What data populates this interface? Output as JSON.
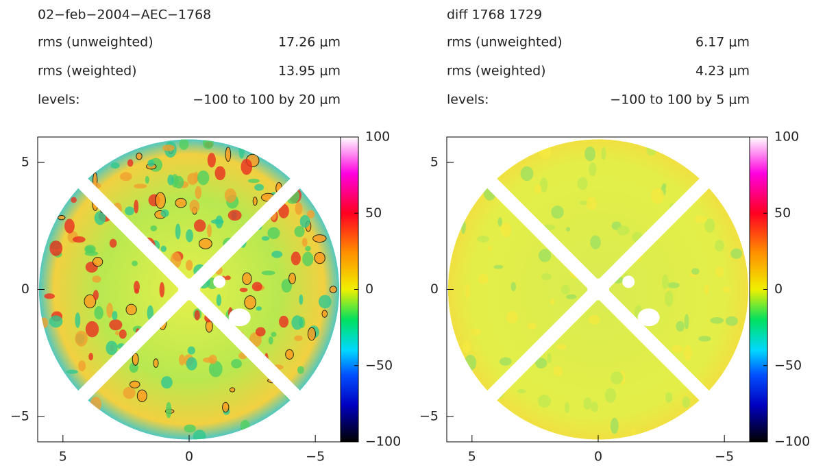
{
  "chart_data": [
    {
      "type": "heatmap",
      "title": "02−feb−2004−AEC−1768",
      "stats": [
        {
          "label": "rms (unweighted)",
          "value": "17.26 μm"
        },
        {
          "label": "rms (weighted)",
          "value": "13.95 μm"
        },
        {
          "label": "levels:",
          "value": "−100 to 100 by 20 μm"
        }
      ],
      "xlim": [
        6,
        -6
      ],
      "ylim": [
        -6,
        6
      ],
      "xticks": [
        5,
        0,
        {
          "value": -5,
          "label": "−5"
        }
      ],
      "yticks": [
        5,
        0,
        {
          "value": -5,
          "label": "−5"
        }
      ],
      "clim": [
        -100,
        100
      ],
      "cticks": [
        100,
        50,
        0,
        {
          "value": -50,
          "label": "−50"
        },
        {
          "value": -100,
          "label": "−100"
        }
      ]
    },
    {
      "type": "heatmap",
      "title": "diff 1768 1729",
      "stats": [
        {
          "label": "rms (unweighted)",
          "value": "6.17 μm"
        },
        {
          "label": "rms (weighted)",
          "value": "4.23 μm"
        },
        {
          "label": "levels:",
          "value": "−100 to 100 by 5 μm"
        }
      ],
      "xlim": [
        6,
        -6
      ],
      "ylim": [
        -6,
        6
      ],
      "xticks": [
        5,
        0,
        {
          "value": -5,
          "label": "−5"
        }
      ],
      "yticks": [
        5,
        0,
        {
          "value": -5,
          "label": "−5"
        }
      ],
      "clim": [
        -100,
        100
      ],
      "cticks": [
        100,
        50,
        0,
        {
          "value": -50,
          "label": "−50"
        },
        {
          "value": -100,
          "label": "−100"
        }
      ]
    }
  ]
}
